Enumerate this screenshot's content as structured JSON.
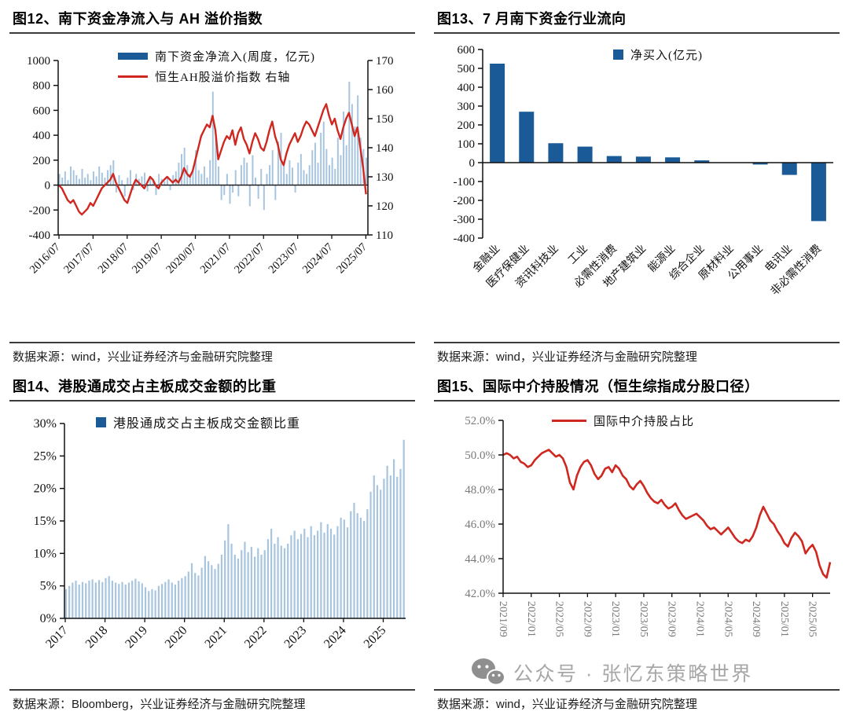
{
  "panels": {
    "fig12": {
      "title": "图12、南下资金净流入与 AH 溢价指数",
      "source": "数据来源：wind，兴业证券经济与金融研究院整理",
      "legend_bar": "南下资金净流入(周度，亿元)",
      "legend_line": "恒生AH股溢价指数 右轴"
    },
    "fig13": {
      "title": "图13、7 月南下资金行业流向",
      "source": "数据来源：wind，兴业证券经济与金融研究院整理",
      "legend_bar": "净买入(亿元)"
    },
    "fig14": {
      "title": "图14、港股通成交占主板成交金额的比重",
      "source": "数据来源：Bloomberg，兴业证券经济与金融研究院整理",
      "legend_bar": "港股通成交占主板成交金额比重"
    },
    "fig15": {
      "title": "图15、国际中介持股情况（恒生综指成分股口径）",
      "source": "数据来源：wind，兴业证券经济与金融研究院整理",
      "legend_line": "国际中介持股占比"
    }
  },
  "watermark": {
    "text": "公众号 · 张忆东策略世界",
    "icon": "wechat-icon"
  },
  "colors": {
    "dark_blue": "#1A5A96",
    "light_blue": "#A8C5DF",
    "red": "#CE2820",
    "axis": "#111111",
    "grey_tick": "#7a7a7a"
  },
  "chart_data": [
    {
      "id": "fig12",
      "type": "combo-bar-line",
      "title": "南下资金净流入与AH溢价指数",
      "x_start": "2016/07",
      "x_unit": "month",
      "x_tick_labels": [
        "2016/07",
        "2017/07",
        "2018/07",
        "2019/07",
        "2020/07",
        "2021/07",
        "2022/07",
        "2023/07",
        "2024/07",
        "2025/07"
      ],
      "x_tick_index": [
        0,
        12,
        24,
        36,
        48,
        60,
        72,
        84,
        96,
        108
      ],
      "left_ylim": [
        -400,
        1000
      ],
      "left_yticks": [
        1000,
        800,
        600,
        400,
        200,
        0,
        -200,
        -400
      ],
      "right_ylim": [
        110,
        170
      ],
      "right_yticks": [
        170,
        160,
        150,
        140,
        130,
        120,
        110
      ],
      "grid": false,
      "legend_position": "top-center",
      "bar_series": {
        "name": "南下资金净流入(周度，亿元)",
        "axis": "left",
        "values": [
          90,
          60,
          110,
          40,
          150,
          120,
          80,
          50,
          130,
          60,
          90,
          40,
          110,
          70,
          150,
          100,
          60,
          120,
          160,
          200,
          -60,
          80,
          40,
          -90,
          60,
          120,
          -40,
          90,
          50,
          70,
          100,
          -50,
          60,
          40,
          -80,
          90,
          50,
          30,
          70,
          -40,
          80,
          110,
          180,
          250,
          300,
          160,
          90,
          130,
          280,
          120,
          90,
          150,
          60,
          200,
          750,
          420,
          150,
          -120,
          -80,
          90,
          -150,
          -60,
          120,
          -90,
          160,
          220,
          180,
          -170,
          240,
          60,
          -110,
          130,
          -200,
          90,
          160,
          280,
          -120,
          350,
          420,
          160,
          90,
          200,
          140,
          -60,
          180,
          250,
          120,
          90,
          160,
          280,
          340,
          180,
          420,
          510,
          290,
          160,
          220,
          130,
          380,
          240,
          590,
          320,
          830,
          650,
          470,
          720,
          380,
          290,
          220
        ]
      },
      "line_series": {
        "name": "恒生AH股溢价指数",
        "axis": "right",
        "values": [
          127,
          126,
          124,
          122,
          121,
          122,
          120,
          118,
          117,
          118,
          119,
          121,
          120,
          122,
          124,
          126,
          127,
          128,
          129,
          131,
          128,
          126,
          124,
          122,
          121,
          124,
          127,
          129,
          128,
          127,
          126,
          128,
          130,
          129,
          127,
          126,
          128,
          129,
          130,
          129,
          128,
          129,
          128,
          130,
          133,
          131,
          130,
          132,
          136,
          140,
          144,
          146,
          148,
          147,
          151,
          146,
          136,
          139,
          142,
          144,
          143,
          146,
          141,
          145,
          147,
          143,
          141,
          138,
          142,
          145,
          143,
          140,
          139,
          142,
          146,
          149,
          144,
          141,
          136,
          134,
          138,
          141,
          143,
          145,
          142,
          144,
          147,
          149,
          148,
          146,
          144,
          147,
          150,
          153,
          155,
          151,
          148,
          150,
          146,
          143,
          147,
          150,
          152,
          148,
          144,
          147,
          140,
          133,
          124
        ]
      }
    },
    {
      "id": "fig13",
      "type": "bar",
      "title": "7月南下资金行业流向",
      "legend": "净买入(亿元)",
      "categories": [
        "金融业",
        "医疗保健业",
        "资讯科技业",
        "工业",
        "必需性消费",
        "地产建筑业",
        "能源业",
        "综合企业",
        "原材料业",
        "公用事业",
        "电讯业",
        "非必需性消费"
      ],
      "values": [
        525,
        270,
        103,
        85,
        35,
        32,
        28,
        12,
        2,
        -10,
        -65,
        -310
      ],
      "ylim": [
        -400,
        600
      ],
      "yticks": [
        600,
        500,
        400,
        300,
        200,
        100,
        0,
        -100,
        -200,
        -300,
        -400
      ],
      "grid": false,
      "legend_position": "top-center"
    },
    {
      "id": "fig14",
      "type": "bar",
      "title": "港股通成交占主板成交金额的比重",
      "legend": "港股通成交占主板成交金额比重",
      "x_start": "2017/01",
      "x_unit": "month",
      "x_tick_labels": [
        "2017",
        "2018",
        "2019",
        "2020",
        "2021",
        "2022",
        "2023",
        "2024",
        "2025"
      ],
      "x_tick_index": [
        0,
        12,
        24,
        36,
        48,
        60,
        72,
        84,
        96
      ],
      "values_unit": "percent",
      "values": [
        4.5,
        5.0,
        5.5,
        5.8,
        5.2,
        5.6,
        5.4,
        5.8,
        6.0,
        5.5,
        5.9,
        5.6,
        6.2,
        6.5,
        5.8,
        5.5,
        5.3,
        5.6,
        5.2,
        5.5,
        5.8,
        6.1,
        5.7,
        5.4,
        4.8,
        4.2,
        4.5,
        4.3,
        5.0,
        5.3,
        5.6,
        6.0,
        5.5,
        5.2,
        5.8,
        6.2,
        6.5,
        7.2,
        8.5,
        7.0,
        6.6,
        7.8,
        9.6,
        8.8,
        8.2,
        7.6,
        8.4,
        9.8,
        12.0,
        14.5,
        11.5,
        9.8,
        9.2,
        10.5,
        11.8,
        10.2,
        11.0,
        9.5,
        10.8,
        9.8,
        10.5,
        12.2,
        13.8,
        11.5,
        12.5,
        11.2,
        10.8,
        11.5,
        12.8,
        13.5,
        12.2,
        13.0,
        13.8,
        12.5,
        14.2,
        12.8,
        13.5,
        14.8,
        13.2,
        14.5,
        13.8,
        12.9,
        14.2,
        15.5,
        15.2,
        14.0,
        16.5,
        17.8,
        16.2,
        15.5,
        15.0,
        16.8,
        19.5,
        22.0,
        20.5,
        19.8,
        21.5,
        23.5,
        22.0,
        24.5,
        21.8,
        23.0,
        27.5
      ],
      "ylim": [
        0,
        30
      ],
      "ytick_labels": [
        "30%",
        "25%",
        "20%",
        "15%",
        "10%",
        "5%",
        "0%"
      ],
      "yticks": [
        30,
        25,
        20,
        15,
        10,
        5,
        0
      ],
      "grid": false,
      "legend_position": "top-left"
    },
    {
      "id": "fig15",
      "type": "line",
      "title": "国际中介持股情况（恒生综指成分股口径）",
      "legend": "国际中介持股占比",
      "x_start": "2021/09",
      "x_unit": "half-month",
      "x_tick_labels": [
        "2021/09",
        "2022/01",
        "2022/05",
        "2022/09",
        "2023/01",
        "2023/05",
        "2023/09",
        "2024/01",
        "2024/05",
        "2024/09",
        "2025/01",
        "2025/05"
      ],
      "x_tick_index": [
        0,
        8,
        16,
        24,
        32,
        40,
        48,
        56,
        64,
        72,
        80,
        88
      ],
      "values_unit": "percent",
      "values": [
        50.0,
        50.1,
        50.0,
        49.8,
        49.9,
        49.6,
        49.5,
        49.3,
        49.4,
        49.7,
        49.9,
        50.1,
        50.2,
        50.3,
        50.1,
        49.9,
        50.0,
        49.8,
        49.3,
        48.4,
        48.0,
        48.8,
        49.3,
        49.6,
        49.7,
        49.4,
        48.9,
        48.6,
        48.8,
        49.2,
        49.3,
        49.0,
        49.4,
        49.2,
        48.8,
        48.6,
        48.2,
        48.0,
        48.3,
        48.5,
        48.2,
        47.8,
        47.5,
        47.3,
        47.2,
        47.4,
        47.1,
        46.9,
        47.0,
        47.2,
        46.8,
        46.5,
        46.3,
        46.4,
        46.5,
        46.6,
        46.4,
        46.2,
        45.9,
        45.7,
        45.8,
        45.6,
        45.4,
        45.6,
        45.8,
        45.5,
        45.2,
        45.0,
        44.9,
        45.1,
        45.0,
        45.3,
        45.8,
        46.5,
        47.0,
        46.6,
        46.2,
        46.0,
        45.6,
        45.3,
        44.9,
        44.7,
        45.2,
        45.5,
        45.3,
        45.0,
        44.3,
        44.6,
        44.8,
        44.4,
        43.6,
        43.1,
        42.9,
        43.8
      ],
      "ylim": [
        42,
        52
      ],
      "ytick_labels": [
        "52.0%",
        "50.0%",
        "48.0%",
        "46.0%",
        "44.0%",
        "42.0%"
      ],
      "yticks": [
        52,
        50,
        48,
        46,
        44,
        42
      ],
      "grid": false,
      "legend_position": "top-center"
    }
  ]
}
